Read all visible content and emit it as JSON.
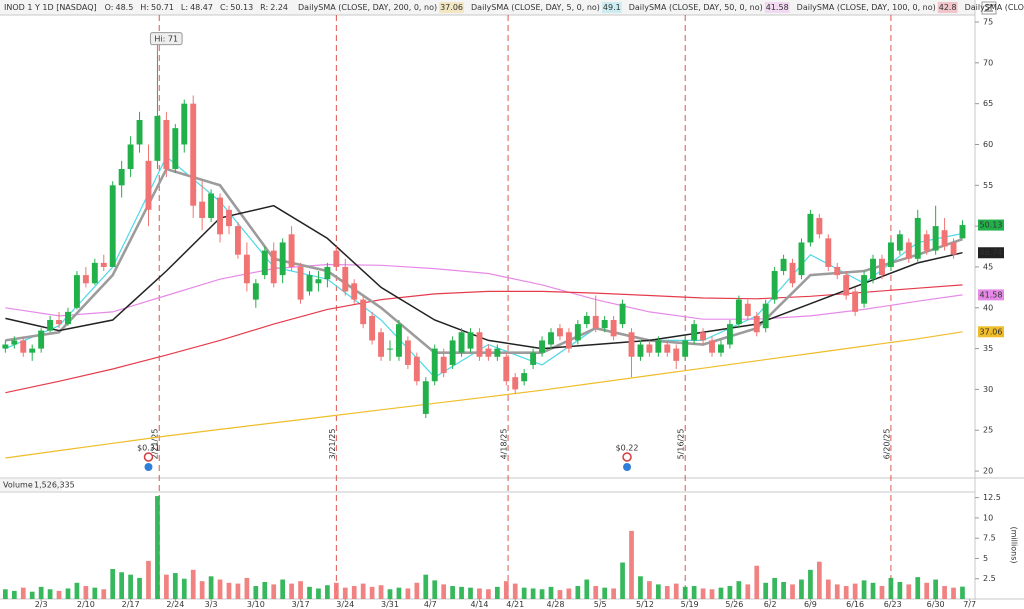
{
  "chart_data": {
    "type": "candlestick",
    "header": {
      "symbol": "INOD 1 Y 1D [NASDAQ]",
      "open_label": "O:",
      "high_label": "H:",
      "low_label": "L:",
      "close_label": "C:",
      "range_label": "R:",
      "range": 2.24
    },
    "up_color": "#22b04b",
    "down_color": "#f07474",
    "candles": [
      [
        35,
        36,
        34.5,
        35.5
      ],
      [
        35.5,
        36.5,
        35,
        36
      ],
      [
        36,
        36.5,
        34,
        34.5
      ],
      [
        34.5,
        35.5,
        33.5,
        35
      ],
      [
        35,
        37.5,
        34.5,
        37.2
      ],
      [
        37.2,
        39,
        37,
        38.5
      ],
      [
        38.5,
        39.5,
        37.5,
        38
      ],
      [
        38,
        40,
        37.8,
        39.5
      ],
      [
        40,
        44.5,
        39.8,
        44
      ],
      [
        44,
        45,
        42.5,
        43
      ],
      [
        43,
        46,
        42.8,
        45.5
      ],
      [
        45.5,
        46.5,
        44.5,
        45
      ],
      [
        45,
        55.5,
        45,
        55
      ],
      [
        55,
        58,
        53.5,
        57
      ],
      [
        57,
        61,
        56,
        60
      ],
      [
        60,
        64,
        59,
        63
      ],
      [
        58,
        60,
        50,
        52
      ],
      [
        58,
        71,
        57,
        63.5
      ],
      [
        63,
        64,
        56,
        57
      ],
      [
        57,
        62.5,
        56.5,
        62
      ],
      [
        60,
        65.5,
        59,
        65
      ],
      [
        65,
        66,
        51,
        52.5
      ],
      [
        53,
        55.5,
        49.5,
        51
      ],
      [
        51,
        54.5,
        50.5,
        54
      ],
      [
        53.5,
        54,
        48,
        49
      ],
      [
        52,
        52.5,
        49,
        50
      ],
      [
        50,
        50.5,
        46,
        46.5
      ],
      [
        46.5,
        48,
        42,
        43
      ],
      [
        41,
        43.5,
        40,
        43
      ],
      [
        44,
        47.5,
        43.5,
        47
      ],
      [
        47,
        48,
        42.5,
        43
      ],
      [
        44,
        48.5,
        43,
        48
      ],
      [
        49,
        50,
        44.5,
        45
      ],
      [
        45,
        45.5,
        40.5,
        41
      ],
      [
        42,
        44.5,
        41.5,
        44
      ],
      [
        43,
        44.5,
        42,
        43.5
      ],
      [
        43.5,
        45.5,
        42.5,
        45
      ],
      [
        47,
        47.5,
        44.5,
        45
      ],
      [
        45,
        46,
        41.5,
        42
      ],
      [
        43,
        43.5,
        40.5,
        41
      ],
      [
        41,
        41.5,
        37.5,
        38
      ],
      [
        39,
        39.5,
        35.5,
        36
      ],
      [
        37,
        37.5,
        33.5,
        34
      ],
      [
        35,
        36,
        33.5,
        35
      ],
      [
        34,
        38.5,
        33.5,
        38
      ],
      [
        36,
        36.5,
        32.5,
        33
      ],
      [
        34,
        34.5,
        30.5,
        31
      ],
      [
        27,
        31.5,
        26.5,
        31
      ],
      [
        31,
        35.5,
        30.5,
        35
      ],
      [
        34,
        35,
        31.5,
        32
      ],
      [
        33,
        36.5,
        32.5,
        36
      ],
      [
        34.5,
        37.5,
        34,
        37
      ],
      [
        35,
        37.5,
        34.5,
        37
      ],
      [
        37,
        37.5,
        33.5,
        34
      ],
      [
        35,
        35.5,
        33.5,
        34
      ],
      [
        34,
        35.5,
        33.5,
        35
      ],
      [
        34,
        34.5,
        30.5,
        31
      ],
      [
        31.5,
        32,
        29.5,
        30
      ],
      [
        31,
        32.5,
        30.5,
        32
      ],
      [
        33,
        35,
        32.5,
        34.5
      ],
      [
        34.5,
        36.5,
        34,
        36
      ],
      [
        35.5,
        37.5,
        35,
        37
      ],
      [
        37.5,
        38,
        36,
        36.5
      ],
      [
        37,
        37.5,
        34.5,
        35
      ],
      [
        36,
        38.5,
        35.5,
        38
      ],
      [
        38,
        39.5,
        37.5,
        39
      ],
      [
        39,
        41.5,
        37,
        37.5
      ],
      [
        37.5,
        39,
        37,
        38.5
      ],
      [
        38.5,
        39,
        36,
        36.5
      ],
      [
        38,
        41,
        37.5,
        40.5
      ],
      [
        37,
        37.5,
        31.5,
        34
      ],
      [
        34,
        36,
        33.5,
        35.5
      ],
      [
        35.5,
        36,
        34,
        34.5
      ],
      [
        34.5,
        36.5,
        34,
        36
      ],
      [
        35.5,
        36,
        34,
        34.5
      ],
      [
        35,
        35.5,
        32.5,
        33.5
      ],
      [
        34,
        36.5,
        33.5,
        36
      ],
      [
        36,
        38.5,
        35.5,
        38
      ],
      [
        37,
        37.5,
        35.5,
        36
      ],
      [
        36,
        36.5,
        34,
        34.5
      ],
      [
        34.5,
        36,
        34,
        35.5
      ],
      [
        35.5,
        38.5,
        35,
        38
      ],
      [
        38,
        41.5,
        37.5,
        41
      ],
      [
        40.5,
        41,
        38.5,
        39
      ],
      [
        39,
        39.5,
        36.5,
        37
      ],
      [
        37.5,
        41,
        37,
        40.5
      ],
      [
        41,
        45,
        40.5,
        44.5
      ],
      [
        44.5,
        46.5,
        44,
        46
      ],
      [
        45.5,
        46,
        42.5,
        43
      ],
      [
        44,
        48.5,
        43.5,
        48
      ],
      [
        48,
        52,
        47.5,
        51.5
      ],
      [
        51,
        51.5,
        48.5,
        49
      ],
      [
        48.5,
        49,
        44.5,
        45
      ],
      [
        45,
        45.5,
        43.5,
        44
      ],
      [
        44,
        44.5,
        41,
        41.5
      ],
      [
        42,
        42.5,
        39,
        39.5
      ],
      [
        40.5,
        44.5,
        40,
        44
      ],
      [
        43.5,
        46.5,
        43,
        46
      ],
      [
        46,
        46.5,
        43.5,
        44
      ],
      [
        45,
        48.5,
        44.5,
        48
      ],
      [
        47,
        49.5,
        46.5,
        49
      ],
      [
        48,
        48.5,
        45.5,
        46
      ],
      [
        46,
        52,
        45.5,
        51
      ],
      [
        49,
        49.5,
        46.5,
        47
      ],
      [
        47,
        52.5,
        46.5,
        50
      ],
      [
        49.5,
        51,
        47,
        47.5
      ],
      [
        48,
        48.5,
        46,
        46.5
      ],
      [
        48.5,
        50.71,
        48.47,
        50.13
      ]
    ],
    "series": [
      {
        "name": "DailySMA (CLOSE, DAY, 200, 0, no)",
        "color": "#f0bd2a",
        "width": 1.2,
        "last_label": true,
        "x": [
          0,
          6,
          12,
          18,
          24,
          30,
          36,
          42,
          48,
          54,
          60,
          66,
          72,
          78,
          84,
          90,
          96,
          102,
          107
        ],
        "values": [
          21.6,
          22.5,
          23.4,
          24.3,
          25.1,
          25.9,
          26.7,
          27.5,
          28.3,
          29.1,
          29.9,
          30.8,
          31.7,
          32.6,
          33.5,
          34.4,
          35.3,
          36.2,
          37.06
        ]
      },
      {
        "name": "DailySMA (CLOSE, DAY, 5, 0, no)",
        "color": "#4fd8e6",
        "width": 1.2,
        "x": [
          0,
          6,
          12,
          18,
          24,
          30,
          36,
          42,
          48,
          54,
          60,
          66,
          72,
          78,
          84,
          90,
          96,
          102,
          107
        ],
        "values": [
          35,
          37.8,
          45,
          58.5,
          53,
          45,
          43.5,
          38.5,
          31.5,
          35.5,
          33,
          37.5,
          36,
          36,
          39,
          46.5,
          43,
          48,
          49.1
        ]
      },
      {
        "name": "DailySMA (CLOSE, DAY, 50, 0, no)",
        "color": "#e68ae8",
        "width": 1.2,
        "last_label": true,
        "x": [
          0,
          6,
          12,
          18,
          24,
          30,
          36,
          42,
          48,
          54,
          60,
          66,
          72,
          78,
          84,
          90,
          96,
          102,
          107
        ],
        "values": [
          40,
          39,
          39.5,
          41.5,
          43.5,
          44.8,
          45.3,
          45.2,
          44.8,
          44.2,
          42.8,
          41,
          39.5,
          38.6,
          38.6,
          39,
          39.8,
          40.8,
          41.58
        ]
      },
      {
        "name": "DailySMA (CLOSE, DAY, 100, 0, no)",
        "color": "#e53c4c",
        "width": 1.2,
        "x": [
          0,
          6,
          12,
          18,
          24,
          30,
          36,
          42,
          48,
          54,
          60,
          66,
          72,
          78,
          84,
          90,
          96,
          102,
          107
        ],
        "values": [
          29.6,
          31,
          32.5,
          34.2,
          36,
          38,
          39.8,
          41,
          41.7,
          42,
          42,
          41.8,
          41.5,
          41.2,
          41.1,
          41.4,
          41.9,
          42.4,
          42.8
        ]
      },
      {
        "color": "#9c9c9c",
        "width": 2.6,
        "x": [
          0,
          6,
          12,
          18,
          24,
          30,
          36,
          42,
          48,
          54,
          60,
          66,
          72,
          78,
          84,
          90,
          96,
          102,
          107
        ],
        "values": [
          36,
          37,
          44,
          57,
          55,
          46,
          44.5,
          40,
          34.5,
          34.5,
          34.5,
          37.5,
          36,
          35.5,
          37.5,
          44,
          44.5,
          46.5,
          48.4
        ]
      },
      {
        "color": "#222222",
        "width": 1.5,
        "last_label": true,
        "x": [
          0,
          6,
          12,
          18,
          24,
          30,
          36,
          42,
          48,
          54,
          60,
          66,
          72,
          78,
          84,
          90,
          96,
          102,
          107
        ],
        "values": [
          38.7,
          37.2,
          38.5,
          44.5,
          51,
          52.5,
          48.5,
          42.5,
          38.5,
          36,
          35,
          35.5,
          36,
          37,
          38,
          40.5,
          43,
          45.5,
          46.74
        ]
      }
    ],
    "legend_truncated": "DailySMA (CLOSE,",
    "legend_truncated_color": "#2233bb",
    "ylim": [
      19.15,
      75.86
    ],
    "yticks": [
      20,
      25,
      30,
      35,
      40,
      45,
      50,
      55,
      60,
      65,
      70,
      75
    ],
    "xlim": [
      -0.6,
      108.4
    ],
    "xticks": [
      {
        "value": 4,
        "label": "2/3"
      },
      {
        "value": 9,
        "label": "2/10"
      },
      {
        "value": 14,
        "label": "2/17"
      },
      {
        "value": 19,
        "label": "2/24"
      },
      {
        "value": 23,
        "label": "3/3"
      },
      {
        "value": 28,
        "label": "3/10"
      },
      {
        "value": 33,
        "label": "3/17"
      },
      {
        "value": 38,
        "label": "3/24"
      },
      {
        "value": 43,
        "label": "3/31"
      },
      {
        "value": 47.5,
        "label": "4/7"
      },
      {
        "value": 53,
        "label": "4/14"
      },
      {
        "value": 57,
        "label": "4/21"
      },
      {
        "value": 61.5,
        "label": "4/28"
      },
      {
        "value": 66.5,
        "label": "5/5"
      },
      {
        "value": 71.5,
        "label": "5/12"
      },
      {
        "value": 76.5,
        "label": "5/19"
      },
      {
        "value": 81.5,
        "label": "5/26"
      },
      {
        "value": 85.5,
        "label": "6/2"
      },
      {
        "value": 90,
        "label": "6/9"
      },
      {
        "value": 95,
        "label": "6/16"
      },
      {
        "value": 99.2,
        "label": "6/23"
      },
      {
        "value": 104,
        "label": "6/30"
      },
      {
        "value": 107.8,
        "label": "7/7"
      }
    ],
    "high_annotation": {
      "label": "Hi: 71",
      "x": 17
    },
    "events": [
      {
        "label": "2/21/25",
        "x": 17.2
      },
      {
        "label": "3/21/25",
        "x": 37
      },
      {
        "label": "4/18/25",
        "x": 56.2
      },
      {
        "label": "5/16/25",
        "x": 76
      },
      {
        "label": "6/20/25",
        "x": 99
      }
    ],
    "event_color": "#d9443f",
    "dividends": [
      {
        "label": "$0.31",
        "x": 16
      },
      {
        "label": "$0.22",
        "x": 69.5
      }
    ],
    "volume": {
      "title": "Volume",
      "last_label": "1,526,335",
      "axis_label": "(millions)",
      "ylim": [
        0,
        13.2
      ],
      "yticks": [
        2.5,
        5,
        7.5,
        10,
        12.5
      ],
      "values": [
        1.2,
        1.0,
        1.4,
        0.9,
        1.5,
        1.2,
        1.0,
        1.3,
        2.0,
        1.6,
        1.4,
        1.2,
        3.7,
        3.3,
        3.0,
        2.6,
        4.7,
        12.7,
        3.0,
        3.2,
        2.5,
        3.6,
        2.2,
        2.8,
        2.4,
        2.0,
        1.9,
        2.6,
        1.6,
        2.1,
        1.8,
        2.4,
        1.9,
        2.2,
        1.5,
        1.3,
        1.7,
        2.0,
        1.4,
        1.6,
        1.9,
        1.5,
        1.7,
        1.2,
        1.4,
        1.3,
        2.0,
        3.0,
        2.3,
        1.8,
        1.6,
        1.5,
        1.4,
        1.3,
        1.2,
        1.5,
        2.2,
        1.9,
        1.4,
        1.3,
        1.2,
        1.5,
        1.1,
        1.3,
        1.6,
        2.4,
        1.6,
        1.4,
        1.3,
        4.5,
        8.4,
        2.8,
        2.2,
        1.8,
        1.6,
        1.9,
        1.5,
        1.6,
        1.3,
        1.2,
        1.4,
        1.6,
        2.2,
        1.8,
        4.1,
        2.0,
        2.6,
        2.1,
        1.8,
        2.4,
        3.6,
        4.6,
        2.4,
        1.8,
        1.6,
        1.9,
        2.3,
        2.0,
        1.6,
        2.6,
        2.1,
        1.8,
        2.7,
        2.0,
        2.4,
        1.6,
        1.4,
        1.526335
      ]
    }
  }
}
